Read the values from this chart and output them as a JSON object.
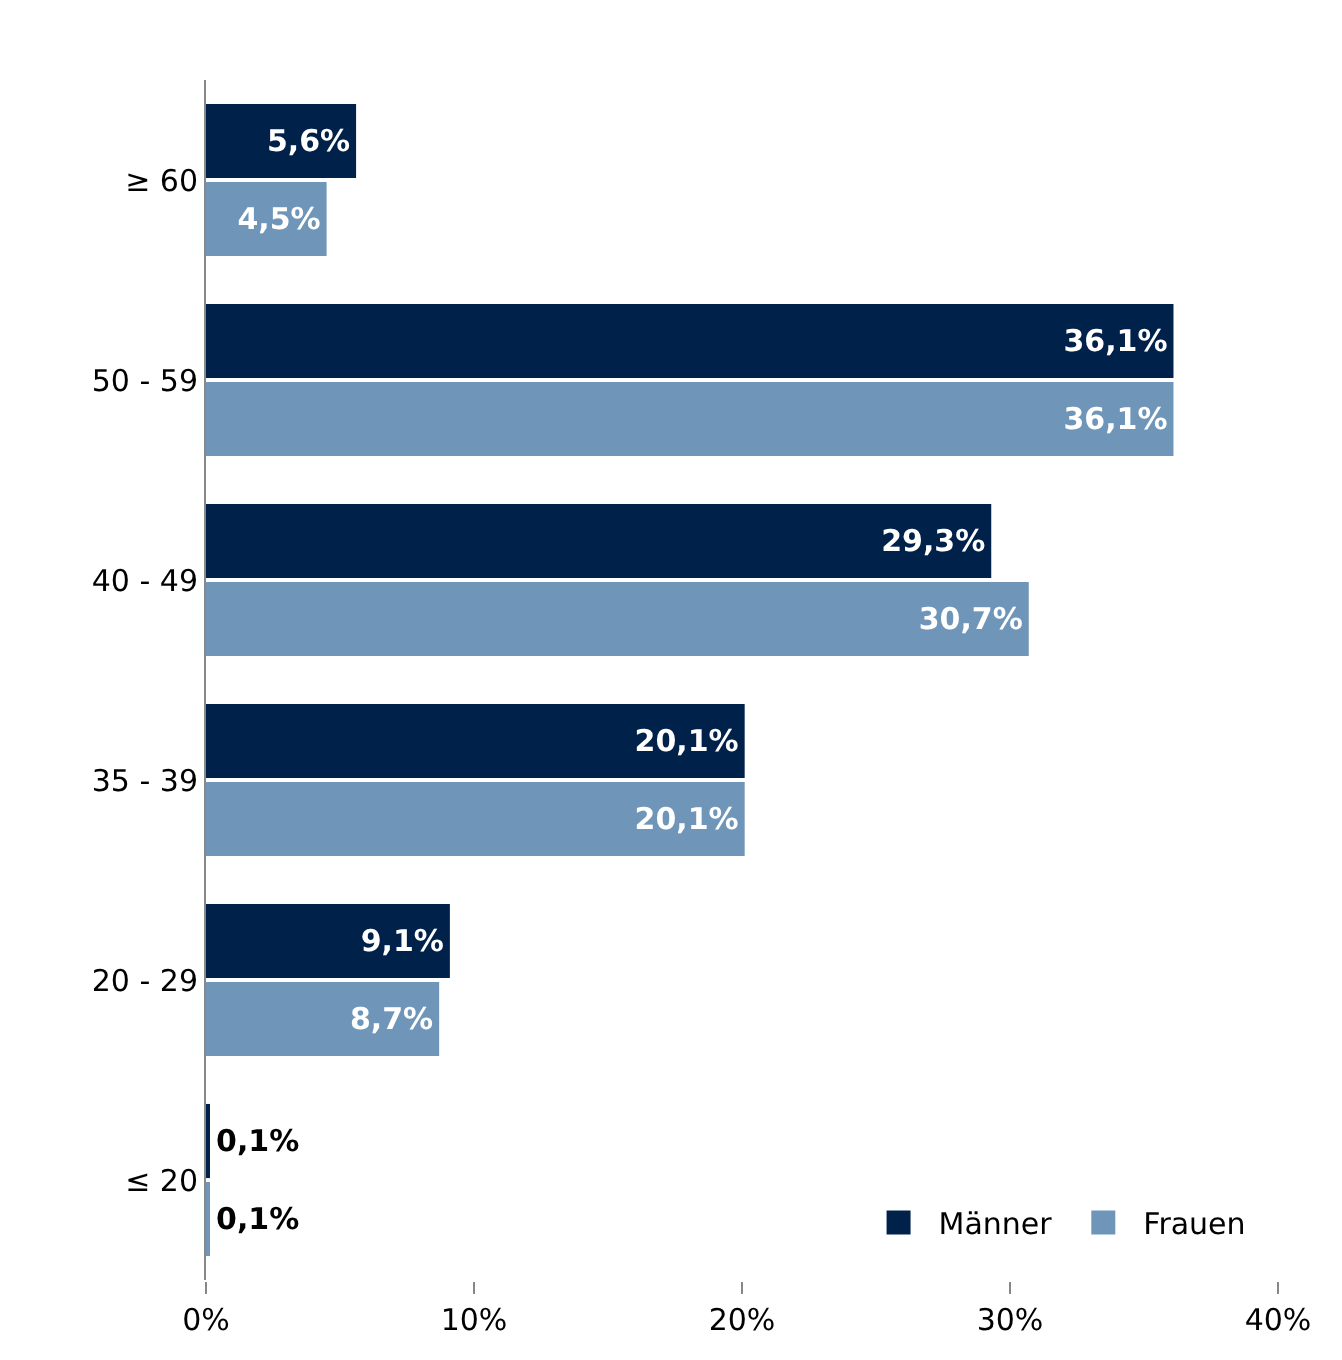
{
  "chart_data": {
    "type": "bar",
    "orientation": "horizontal",
    "categories": [
      "≥ 60",
      "50 - 59",
      "40 - 49",
      "35 - 39",
      "20 - 29",
      "≤ 20"
    ],
    "series": [
      {
        "name": "Männer",
        "color": "#00214a",
        "values": [
          5.6,
          36.1,
          29.3,
          20.1,
          9.1,
          0.1
        ],
        "value_labels": [
          "5,6%",
          "36,1%",
          "29,3%",
          "20,1%",
          "9,1%",
          "0,1%"
        ]
      },
      {
        "name": "Frauen",
        "color": "#6f96b8",
        "values": [
          4.5,
          36.1,
          30.7,
          20.1,
          8.7,
          0.1
        ],
        "value_labels": [
          "4,5%",
          "36,1%",
          "30,7%",
          "20,1%",
          "8,7%",
          "0,1%"
        ]
      }
    ],
    "xlim": [
      0,
      40
    ],
    "xticks": [
      {
        "value": 0,
        "label": "0%"
      },
      {
        "value": 10,
        "label": "10%"
      },
      {
        "value": 20,
        "label": "20%"
      },
      {
        "value": 30,
        "label": "30%"
      },
      {
        "value": 40,
        "label": "40%"
      }
    ],
    "legend": "bottom right"
  }
}
